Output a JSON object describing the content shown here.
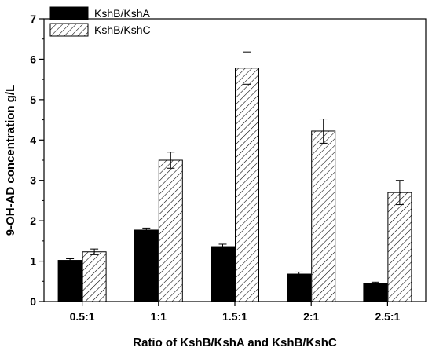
{
  "chart_data": {
    "type": "bar",
    "categories": [
      "0.5:1",
      "1:1",
      "1.5:1",
      "2:1",
      "2.5:1"
    ],
    "series": [
      {
        "name": "KshB/KshA",
        "values": [
          1.02,
          1.77,
          1.36,
          0.68,
          0.44
        ],
        "errors": [
          0.04,
          0.05,
          0.06,
          0.05,
          0.04
        ],
        "fill": "solid",
        "color": "#000000"
      },
      {
        "name": "KshB/KshC",
        "values": [
          1.23,
          3.5,
          5.78,
          4.22,
          2.7
        ],
        "errors": [
          0.07,
          0.2,
          0.4,
          0.3,
          0.3
        ],
        "fill": "hatch",
        "color": "#000000"
      }
    ],
    "xlabel": "Ratio of KshB/KshA and KshB/KshC",
    "ylabel": "9-OH-AD concentration g/L",
    "ylim": [
      0,
      7
    ],
    "yticks": [
      0,
      1,
      2,
      3,
      4,
      5,
      6,
      7
    ],
    "grid": false,
    "legend_position": "top-left"
  }
}
